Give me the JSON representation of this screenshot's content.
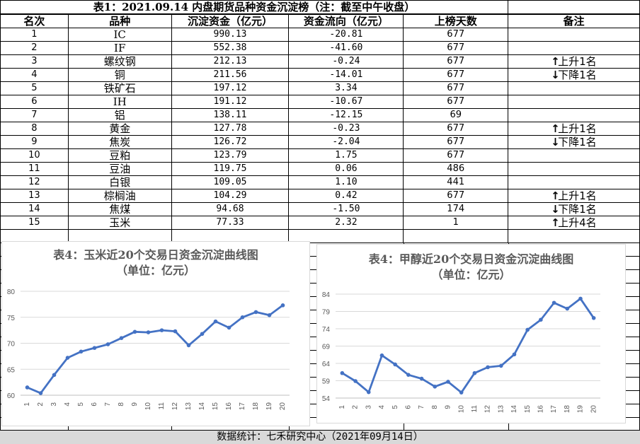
{
  "title": "表1：2021.09.14 内盘期货品种资金沉淀榜（注：截至中午收盘）",
  "headers": [
    "名次",
    "品种",
    "沉淀资金（亿元）",
    "资金流向（亿元）",
    "上榜天数",
    "备注"
  ],
  "rows": [
    {
      "rank": "1",
      "name": "IC",
      "capital": "990.13",
      "flow": "-20.81",
      "days": "677",
      "note": ""
    },
    {
      "rank": "2",
      "name": "IF",
      "capital": "552.38",
      "flow": "-41.60",
      "days": "677",
      "note": ""
    },
    {
      "rank": "3",
      "name": "螺纹钢",
      "capital": "212.13",
      "flow": "-0.24",
      "days": "677",
      "note": "上升1名",
      "dir": "up"
    },
    {
      "rank": "4",
      "name": "铜",
      "capital": "211.56",
      "flow": "-14.01",
      "days": "677",
      "note": "下降1名",
      "dir": "down"
    },
    {
      "rank": "5",
      "name": "铁矿石",
      "capital": "197.12",
      "flow": "3.34",
      "days": "677",
      "note": ""
    },
    {
      "rank": "6",
      "name": "IH",
      "capital": "191.12",
      "flow": "-10.67",
      "days": "677",
      "note": ""
    },
    {
      "rank": "7",
      "name": "铝",
      "capital": "138.11",
      "flow": "-12.15",
      "days": "69",
      "note": ""
    },
    {
      "rank": "8",
      "name": "黄金",
      "capital": "127.78",
      "flow": "-0.23",
      "days": "677",
      "note": "上升1名",
      "dir": "up"
    },
    {
      "rank": "9",
      "name": "焦炭",
      "capital": "126.72",
      "flow": "-2.04",
      "days": "677",
      "note": "下降1名",
      "dir": "down"
    },
    {
      "rank": "10",
      "name": "豆粕",
      "capital": "123.79",
      "flow": "1.75",
      "days": "677",
      "note": ""
    },
    {
      "rank": "11",
      "name": "豆油",
      "capital": "119.75",
      "flow": "0.06",
      "days": "486",
      "note": ""
    },
    {
      "rank": "12",
      "name": "白银",
      "capital": "109.05",
      "flow": "1.10",
      "days": "441",
      "note": ""
    },
    {
      "rank": "13",
      "name": "棕榈油",
      "capital": "104.29",
      "flow": "0.42",
      "days": "677",
      "note": "上升1名",
      "dir": "up"
    },
    {
      "rank": "14",
      "name": "焦煤",
      "capital": "94.68",
      "flow": "-1.50",
      "days": "174",
      "note": "下降1名",
      "dir": "down"
    },
    {
      "rank": "15",
      "name": "玉米",
      "capital": "77.33",
      "flow": "2.32",
      "days": "1",
      "note": "上升4名",
      "dir": "up"
    }
  ],
  "footer": "数据统计：七禾研究中心（2021年09月14日）",
  "chart_data": [
    {
      "type": "line",
      "title": "表4：玉米近20个交易日资金沉淀曲线图",
      "subtitle": "（单位：亿元）",
      "x": [
        "1",
        "2",
        "3",
        "4",
        "5",
        "6",
        "7",
        "8",
        "9",
        "10",
        "11",
        "12",
        "13",
        "14",
        "15",
        "16",
        "17",
        "18",
        "19",
        "20"
      ],
      "values": [
        61.5,
        60.4,
        63.9,
        67.2,
        68.4,
        69.1,
        69.8,
        71.0,
        72.2,
        72.1,
        72.5,
        72.3,
        69.6,
        71.8,
        74.2,
        73.0,
        75.0,
        76.0,
        75.4,
        77.3
      ],
      "ylim": [
        60,
        80
      ],
      "yticks": [
        60,
        65,
        70,
        75,
        80
      ],
      "color": "#4472c4",
      "grid": true
    },
    {
      "type": "line",
      "title": "表4：甲醇近20个交易日资金沉淀曲线图",
      "subtitle": "（单位：亿元）",
      "x": [
        "1",
        "2",
        "3",
        "4",
        "5",
        "6",
        "7",
        "8",
        "9",
        "10",
        "11",
        "12",
        "13",
        "14",
        "15",
        "16",
        "17",
        "18",
        "19",
        "20"
      ],
      "values": [
        61.2,
        58.9,
        55.7,
        66.3,
        63.7,
        60.7,
        59.6,
        57.3,
        58.7,
        55.6,
        61.2,
        62.9,
        63.3,
        66.6,
        73.7,
        76.6,
        81.5,
        79.8,
        82.7,
        77.1
      ],
      "ylim": [
        54,
        84
      ],
      "yticks": [
        54,
        59,
        64,
        69,
        74,
        79,
        84
      ],
      "color": "#4472c4",
      "grid": true
    }
  ]
}
